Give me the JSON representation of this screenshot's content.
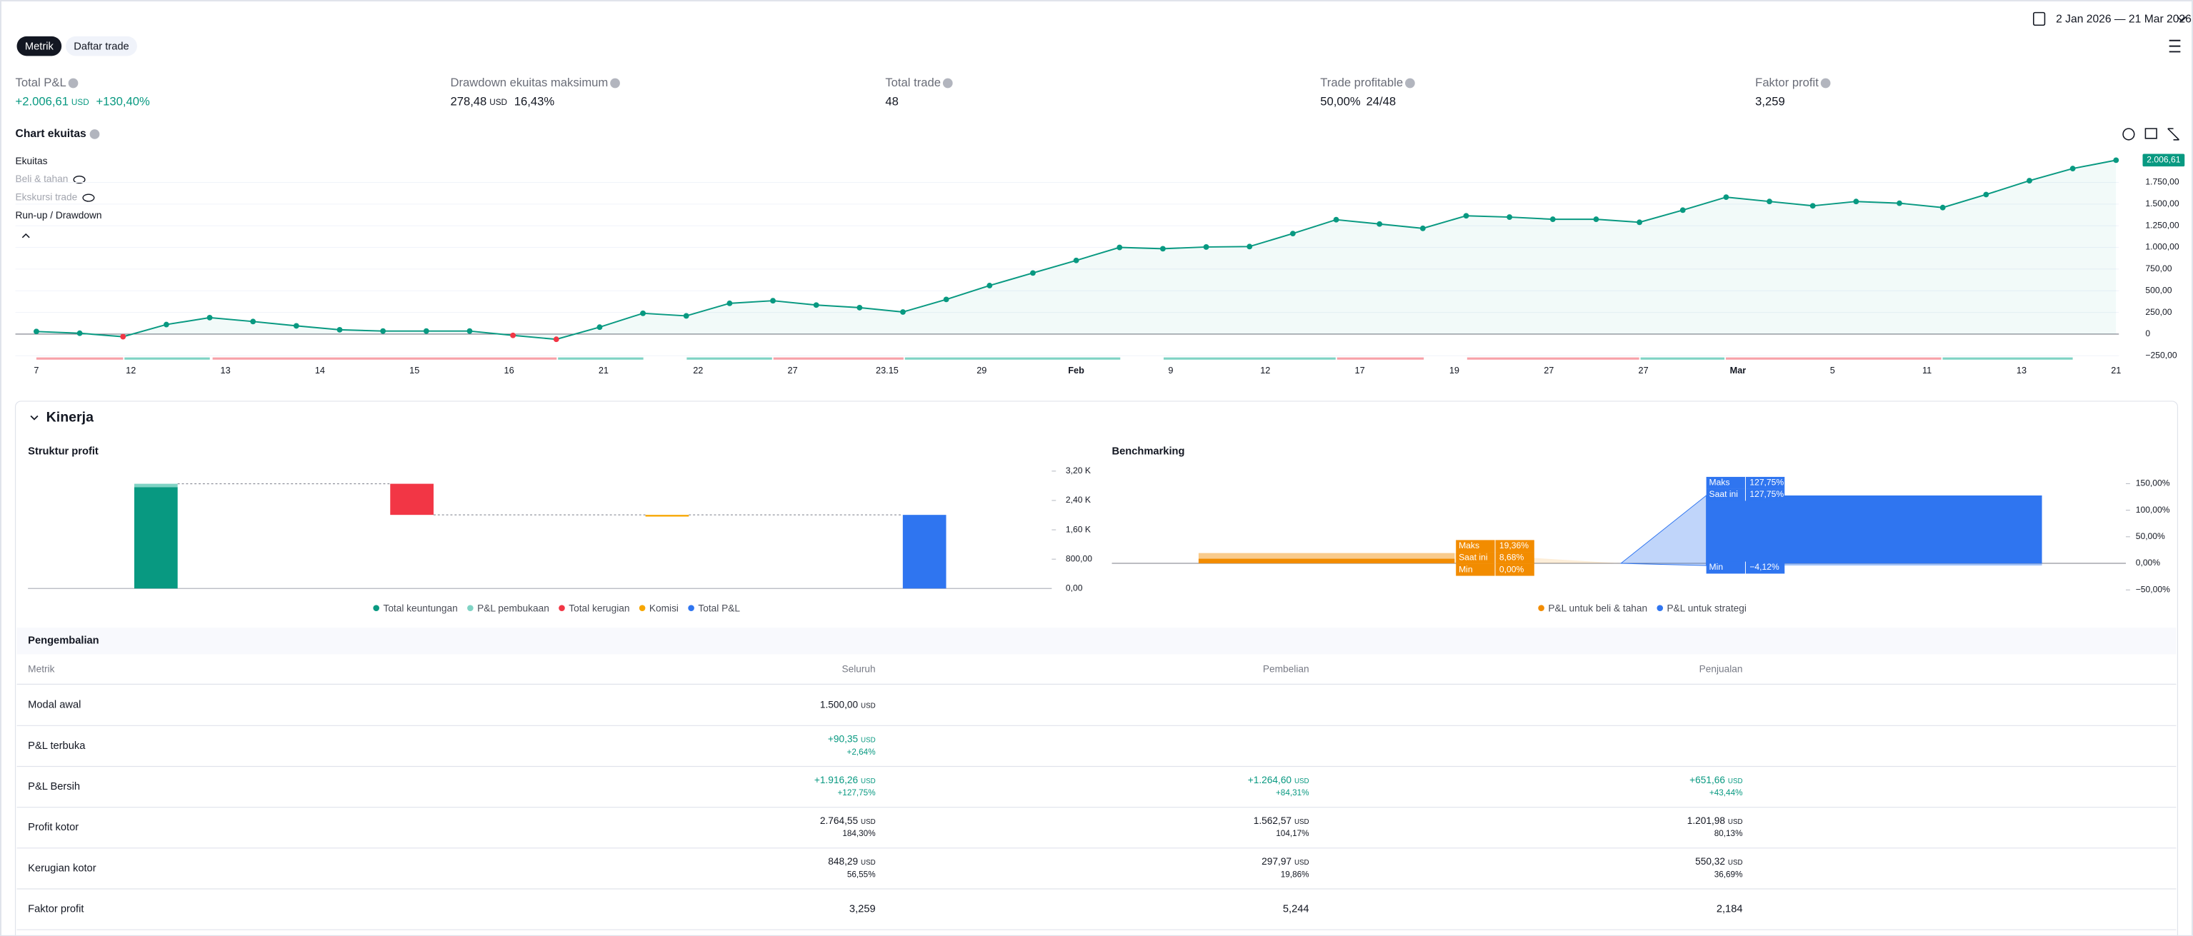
{
  "header": {
    "date_range": "2 Jan 2026 — 21 Mar 2026"
  },
  "tabs": [
    "Metrik",
    "Daftar trade"
  ],
  "summary": [
    {
      "label": "Total P&L",
      "value": "+2.006,61",
      "unit": "USD",
      "extra": "+130,40%",
      "color": "#089981"
    },
    {
      "label": "Drawdown ekuitas maksimum",
      "value": "278,48",
      "unit": "USD",
      "extra": "16,43%"
    },
    {
      "label": "Total trade",
      "value": "48"
    },
    {
      "label": "Trade profitable",
      "value": "50,00%",
      "extra": "24/48"
    },
    {
      "label": "Faktor profit",
      "value": "3,259"
    }
  ],
  "equity": {
    "title": "Chart ekuitas",
    "legend": [
      "Ekuitas",
      "Beli & tahan",
      "Ekskursi trade",
      "Run-up / Drawdown"
    ],
    "color": "#089981",
    "negative_color": "#f23645",
    "values": [
      30,
      10,
      -30,
      110,
      190,
      145,
      95,
      50,
      35,
      35,
      35,
      -15,
      -60,
      80,
      240,
      210,
      355,
      385,
      335,
      305,
      255,
      400,
      560,
      705,
      850,
      1000,
      985,
      1005,
      1010,
      1160,
      1320,
      1270,
      1220,
      1365,
      1350,
      1325,
      1325,
      1290,
      1430,
      1580,
      1530,
      1480,
      1530,
      1510,
      1460,
      1610,
      1770,
      1910,
      2006.61
    ],
    "last_label": "2.006,61",
    "ylim": [
      -250,
      2100
    ],
    "yticks": [
      {
        "value": -250,
        "label": "−250,00"
      },
      0,
      {
        "value": 250,
        "label": "250,00"
      },
      {
        "value": 500,
        "label": "500,00"
      },
      {
        "value": 750,
        "label": "750,00"
      },
      {
        "value": 1000,
        "label": "1.000,00"
      },
      {
        "value": 1250,
        "label": "1.250,00"
      },
      {
        "value": 1500,
        "label": "1.500,00"
      },
      {
        "value": 1750,
        "label": "1.750,00"
      }
    ],
    "x_labels": [
      "7",
      "12",
      "13",
      "14",
      "15",
      "16",
      "21",
      "22",
      "27",
      "23.15",
      "29",
      "Feb",
      "9",
      "12",
      "17",
      "19",
      "27",
      "27",
      "Mar",
      "5",
      "11",
      "13",
      "21"
    ]
  },
  "performance": {
    "title": "Kinerja"
  },
  "profit_structure": {
    "title": "Struktur profit",
    "categories": [
      "Total keuntungan",
      "P&L pembukaan",
      "Total kerugian",
      "Komisi",
      "Total P&L"
    ],
    "values": [
      2764.55,
      90.35,
      -848.29,
      0,
      2006.61
    ],
    "colors": [
      "#089981",
      "#7fd3c4",
      "#f23645",
      "#f7a600",
      "#2f75f0"
    ],
    "ylim": [
      0,
      3300
    ],
    "yticks": [
      {
        "value": 0,
        "label": "0,00"
      },
      {
        "value": 800,
        "label": "800,00"
      },
      {
        "value": 1600,
        "label": "1,60 K"
      },
      {
        "value": 2400,
        "label": "2,40 K"
      },
      {
        "value": 3200,
        "label": "3,20 K"
      }
    ]
  },
  "benchmark": {
    "title": "Benchmarking",
    "stat_labels": [
      "Maks",
      "Saat ini",
      "Min"
    ],
    "series": [
      {
        "name": "P&L untuk beli & tahan",
        "color": "#f28c00",
        "values": [
          19.36,
          8.68,
          0
        ],
        "value_labels": [
          "19,36%",
          "8,68%",
          "0,00%"
        ]
      },
      {
        "name": "P&L untuk strategi",
        "color": "#2f75f0",
        "values": [
          127.75,
          127.75,
          -4.12
        ],
        "value_labels": [
          "127,75%",
          "127,75%",
          "−4,12%"
        ]
      }
    ],
    "ylim": [
      -65,
      170
    ],
    "yticks": [
      {
        "value": -50,
        "label": "−50,00%"
      },
      {
        "value": 0,
        "label": "0,00%"
      },
      {
        "value": 50,
        "label": "50,00%"
      },
      {
        "value": 100,
        "label": "100,00%"
      },
      {
        "value": 150,
        "label": "150,00%"
      }
    ]
  },
  "returns": {
    "title": "Pengembalian",
    "columns": [
      "Metrik",
      "Seluruh",
      "Pembelian",
      "Penjualan"
    ],
    "unit": "USD",
    "rows": [
      {
        "label": "Modal awal",
        "cells": [
          {
            "value": "1.500,00"
          },
          null,
          null
        ]
      },
      {
        "label": "P&L terbuka",
        "cells": [
          {
            "value": "+90,35",
            "pct": "+2,64%"
          },
          null,
          null
        ]
      },
      {
        "label": "P&L Bersih",
        "cells": [
          {
            "value": "+1.916,26",
            "pct": "+127,75%"
          },
          {
            "value": "+1.264,60",
            "pct": "+84,31%"
          },
          {
            "value": "+651,66",
            "pct": "+43,44%"
          }
        ]
      },
      {
        "label": "Profit kotor",
        "cells": [
          {
            "value": "2.764,55",
            "pct": "184,30%"
          },
          {
            "value": "1.562,57",
            "pct": "104,17%"
          },
          {
            "value": "1.201,98",
            "pct": "80,13%"
          }
        ]
      },
      {
        "label": "Kerugian kotor",
        "cells": [
          {
            "value": "848,29",
            "pct": "56,55%"
          },
          {
            "value": "297,97",
            "pct": "19,86%"
          },
          {
            "value": "550,32",
            "pct": "36,69%"
          }
        ]
      },
      {
        "label": "Faktor profit",
        "cells": [
          {
            "text": "3,259"
          },
          {
            "text": "5,244"
          },
          {
            "text": "2,184"
          }
        ]
      }
    ]
  }
}
